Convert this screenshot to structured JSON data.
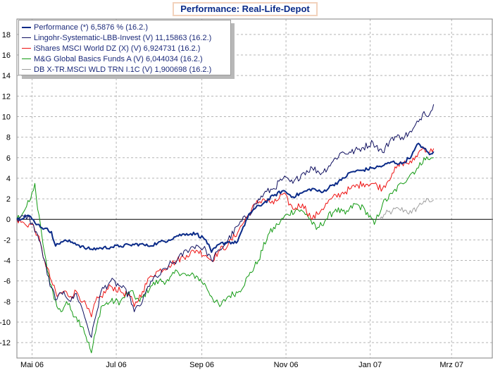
{
  "chart_data": {
    "type": "line",
    "title": "Performance: Real-Life-Depot",
    "xlabel": "",
    "ylabel": "",
    "ylim": [
      -13.5,
      19.5
    ],
    "yticks": [
      -12,
      -10,
      -8,
      -6,
      -4,
      -2,
      0,
      2,
      4,
      6,
      8,
      10,
      12,
      14,
      16,
      18
    ],
    "xlim": [
      "2006-04-20",
      "2007-03-31"
    ],
    "xticks": [
      {
        "date": "2006-05-01",
        "label": "Mai 06"
      },
      {
        "date": "2006-07-01",
        "label": "Jul 06"
      },
      {
        "date": "2006-09-01",
        "label": "Sep 06"
      },
      {
        "date": "2006-11-01",
        "label": "Nov 06"
      },
      {
        "date": "2007-01-01",
        "label": "Jan 07"
      },
      {
        "date": "2007-03-01",
        "label": "Mrz 07"
      }
    ],
    "grid": true,
    "legend_position": "top-left",
    "series": [
      {
        "name": "Performance (*) 6,5876 % (16.2.)",
        "color": "#0a2a88",
        "points": [
          [
            "2006-04-20",
            0
          ],
          [
            "2006-04-28",
            0.4
          ],
          [
            "2006-05-05",
            -0.5
          ],
          [
            "2006-05-10",
            -0.9
          ],
          [
            "2006-05-15",
            -1.2
          ],
          [
            "2006-05-18",
            -2.6
          ],
          [
            "2006-05-22",
            -2.2
          ],
          [
            "2006-05-26",
            -2.1
          ],
          [
            "2006-06-01",
            -2.3
          ],
          [
            "2006-06-08",
            -2.8
          ],
          [
            "2006-06-13",
            -2.9
          ],
          [
            "2006-06-20",
            -2.8
          ],
          [
            "2006-06-27",
            -2.7
          ],
          [
            "2006-07-04",
            -2.6
          ],
          [
            "2006-07-11",
            -2.5
          ],
          [
            "2006-07-18",
            -2.4
          ],
          [
            "2006-07-24",
            -2.6
          ],
          [
            "2006-07-31",
            -2.3
          ],
          [
            "2006-08-08",
            -2.0
          ],
          [
            "2006-08-14",
            -1.6
          ],
          [
            "2006-08-21",
            -1.4
          ],
          [
            "2006-08-28",
            -1.4
          ],
          [
            "2006-09-04",
            -2.0
          ],
          [
            "2006-09-08",
            -3.2
          ],
          [
            "2006-09-14",
            -2.4
          ],
          [
            "2006-09-20",
            -2.2
          ],
          [
            "2006-09-26",
            -2.3
          ],
          [
            "2006-10-02",
            -0.6
          ],
          [
            "2006-10-05",
            0.5
          ],
          [
            "2006-10-09",
            1.0
          ],
          [
            "2006-10-16",
            1.6
          ],
          [
            "2006-10-23",
            2.3
          ],
          [
            "2006-10-30",
            2.8
          ],
          [
            "2006-11-06",
            2.2
          ],
          [
            "2006-11-13",
            2.6
          ],
          [
            "2006-11-20",
            3.0
          ],
          [
            "2006-11-27",
            2.6
          ],
          [
            "2006-12-04",
            3.3
          ],
          [
            "2006-12-11",
            3.8
          ],
          [
            "2006-12-18",
            4.6
          ],
          [
            "2006-12-27",
            4.8
          ],
          [
            "2007-01-03",
            5.0
          ],
          [
            "2007-01-10",
            5.2
          ],
          [
            "2007-01-17",
            5.6
          ],
          [
            "2007-01-24",
            5.4
          ],
          [
            "2007-01-31",
            6.2
          ],
          [
            "2007-02-05",
            7.4
          ],
          [
            "2007-02-09",
            6.9
          ],
          [
            "2007-02-13",
            6.3
          ],
          [
            "2007-02-16",
            6.6
          ]
        ]
      },
      {
        "name": "Lingohr-Systematic-LBB-Invest (V) 11,15863 (16.2.)",
        "color": "#101060",
        "points": [
          [
            "2006-04-20",
            0
          ],
          [
            "2006-04-28",
            0.3
          ],
          [
            "2006-05-05",
            -1.5
          ],
          [
            "2006-05-10",
            -4.0
          ],
          [
            "2006-05-14",
            -6.5
          ],
          [
            "2006-05-19",
            -7.8
          ],
          [
            "2006-05-24",
            -7.0
          ],
          [
            "2006-05-29",
            -8.0
          ],
          [
            "2006-06-02",
            -7.2
          ],
          [
            "2006-06-07",
            -9.0
          ],
          [
            "2006-06-13",
            -11.5
          ],
          [
            "2006-06-16",
            -9.5
          ],
          [
            "2006-06-20",
            -7.0
          ],
          [
            "2006-06-27",
            -6.0
          ],
          [
            "2006-07-04",
            -6.5
          ],
          [
            "2006-07-11",
            -7.5
          ],
          [
            "2006-07-14",
            -9.0
          ],
          [
            "2006-07-20",
            -8.0
          ],
          [
            "2006-07-26",
            -6.0
          ],
          [
            "2006-08-01",
            -5.5
          ],
          [
            "2006-08-08",
            -4.5
          ],
          [
            "2006-08-14",
            -4.0
          ],
          [
            "2006-08-21",
            -3.0
          ],
          [
            "2006-08-28",
            -2.5
          ],
          [
            "2006-09-04",
            -3.0
          ],
          [
            "2006-09-08",
            -4.0
          ],
          [
            "2006-09-14",
            -3.0
          ],
          [
            "2006-09-20",
            -2.0
          ],
          [
            "2006-09-28",
            -0.5
          ],
          [
            "2006-10-05",
            0.5
          ],
          [
            "2006-10-10",
            1.5
          ],
          [
            "2006-10-16",
            2.5
          ],
          [
            "2006-10-23",
            3.0
          ],
          [
            "2006-10-30",
            4.0
          ],
          [
            "2006-11-06",
            3.5
          ],
          [
            "2006-11-13",
            4.5
          ],
          [
            "2006-11-20",
            5.0
          ],
          [
            "2006-11-27",
            4.5
          ],
          [
            "2006-12-04",
            5.5
          ],
          [
            "2006-12-11",
            6.5
          ],
          [
            "2006-12-18",
            6.5
          ],
          [
            "2006-12-27",
            7.0
          ],
          [
            "2007-01-03",
            7.5
          ],
          [
            "2007-01-10",
            6.5
          ],
          [
            "2007-01-17",
            8.0
          ],
          [
            "2007-01-24",
            8.0
          ],
          [
            "2007-01-31",
            8.5
          ],
          [
            "2007-02-05",
            9.5
          ],
          [
            "2007-02-09",
            10.5
          ],
          [
            "2007-02-13",
            10.2
          ],
          [
            "2007-02-16",
            11.2
          ]
        ]
      },
      {
        "name": "iShares MSCI World DZ (X) (V) 6,924731 (16.2.)",
        "color": "#ee1111",
        "points": [
          [
            "2006-04-20",
            0
          ],
          [
            "2006-04-26",
            -0.5
          ],
          [
            "2006-05-01",
            -0.5
          ],
          [
            "2006-05-05",
            -1.5
          ],
          [
            "2006-05-10",
            -4.0
          ],
          [
            "2006-05-15",
            -6.0
          ],
          [
            "2006-05-19",
            -7.5
          ],
          [
            "2006-05-24",
            -7.0
          ],
          [
            "2006-05-29",
            -7.5
          ],
          [
            "2006-06-02",
            -7.0
          ],
          [
            "2006-06-07",
            -8.0
          ],
          [
            "2006-06-13",
            -9.5
          ],
          [
            "2006-06-16",
            -8.0
          ],
          [
            "2006-06-20",
            -7.5
          ],
          [
            "2006-06-27",
            -6.5
          ],
          [
            "2006-07-04",
            -7.0
          ],
          [
            "2006-07-11",
            -7.5
          ],
          [
            "2006-07-14",
            -8.5
          ],
          [
            "2006-07-20",
            -7.0
          ],
          [
            "2006-07-26",
            -5.5
          ],
          [
            "2006-08-01",
            -5.0
          ],
          [
            "2006-08-08",
            -4.5
          ],
          [
            "2006-08-14",
            -4.0
          ],
          [
            "2006-08-21",
            -3.5
          ],
          [
            "2006-08-28",
            -3.0
          ],
          [
            "2006-09-04",
            -3.5
          ],
          [
            "2006-09-08",
            -4.0
          ],
          [
            "2006-09-14",
            -3.0
          ],
          [
            "2006-09-20",
            -2.5
          ],
          [
            "2006-09-28",
            -1.0
          ],
          [
            "2006-10-05",
            0.5
          ],
          [
            "2006-10-10",
            1.5
          ],
          [
            "2006-10-16",
            2.0
          ],
          [
            "2006-10-23",
            1.5
          ],
          [
            "2006-10-30",
            2.5
          ],
          [
            "2006-11-06",
            1.0
          ],
          [
            "2006-11-13",
            1.5
          ],
          [
            "2006-11-20",
            0.0
          ],
          [
            "2006-11-27",
            1.0
          ],
          [
            "2006-12-04",
            2.0
          ],
          [
            "2006-12-11",
            2.5
          ],
          [
            "2006-12-18",
            3.0
          ],
          [
            "2006-12-27",
            3.5
          ],
          [
            "2007-01-03",
            3.5
          ],
          [
            "2007-01-10",
            3.0
          ],
          [
            "2007-01-17",
            4.5
          ],
          [
            "2007-01-24",
            5.5
          ],
          [
            "2007-01-31",
            5.5
          ],
          [
            "2007-02-05",
            6.5
          ],
          [
            "2007-02-09",
            7.0
          ],
          [
            "2007-02-13",
            6.5
          ],
          [
            "2007-02-16",
            6.9
          ]
        ]
      },
      {
        "name": "M&G Global Basics Funds A (V) 6,044034 (16.2.)",
        "color": "#129a12",
        "points": [
          [
            "2006-04-20",
            0
          ],
          [
            "2006-04-26",
            1.0
          ],
          [
            "2006-04-30",
            2.0
          ],
          [
            "2006-05-03",
            3.5
          ],
          [
            "2006-05-05",
            1.0
          ],
          [
            "2006-05-08",
            -1.5
          ],
          [
            "2006-05-12",
            -5.0
          ],
          [
            "2006-05-16",
            -7.0
          ],
          [
            "2006-05-19",
            -8.5
          ],
          [
            "2006-05-22",
            -9.0
          ],
          [
            "2006-05-26",
            -8.0
          ],
          [
            "2006-05-30",
            -9.0
          ],
          [
            "2006-06-02",
            -9.5
          ],
          [
            "2006-06-07",
            -10.5
          ],
          [
            "2006-06-13",
            -13.0
          ],
          [
            "2006-06-16",
            -11.0
          ],
          [
            "2006-06-20",
            -8.5
          ],
          [
            "2006-06-27",
            -8.0
          ],
          [
            "2006-07-04",
            -8.0
          ],
          [
            "2006-07-11",
            -7.0
          ],
          [
            "2006-07-18",
            -8.0
          ],
          [
            "2006-07-26",
            -6.5
          ],
          [
            "2006-08-01",
            -6.0
          ],
          [
            "2006-08-08",
            -6.0
          ],
          [
            "2006-08-14",
            -5.0
          ],
          [
            "2006-08-21",
            -5.5
          ],
          [
            "2006-08-28",
            -5.5
          ],
          [
            "2006-09-04",
            -6.5
          ],
          [
            "2006-09-08",
            -7.5
          ],
          [
            "2006-09-14",
            -8.5
          ],
          [
            "2006-09-20",
            -7.5
          ],
          [
            "2006-09-28",
            -7.0
          ],
          [
            "2006-10-05",
            -5.5
          ],
          [
            "2006-10-12",
            -4.0
          ],
          [
            "2006-10-19",
            -1.5
          ],
          [
            "2006-10-26",
            -0.5
          ],
          [
            "2006-11-02",
            0.5
          ],
          [
            "2006-11-09",
            1.0
          ],
          [
            "2006-11-16",
            0.5
          ],
          [
            "2006-11-23",
            -1.0
          ],
          [
            "2006-11-30",
            0.0
          ],
          [
            "2006-12-07",
            1.0
          ],
          [
            "2006-12-14",
            0.5
          ],
          [
            "2006-12-21",
            1.5
          ],
          [
            "2006-12-28",
            1.0
          ],
          [
            "2007-01-04",
            -0.5
          ],
          [
            "2007-01-10",
            1.5
          ],
          [
            "2007-01-17",
            2.5
          ],
          [
            "2007-01-24",
            3.5
          ],
          [
            "2007-01-31",
            4.5
          ],
          [
            "2007-02-05",
            5.0
          ],
          [
            "2007-02-09",
            6.0
          ],
          [
            "2007-02-13",
            5.8
          ],
          [
            "2007-02-16",
            6.0
          ]
        ]
      },
      {
        "name": "DB X-TR.MSCI WLD TRN I.1C (V) 1,900698 (16.2.)",
        "color": "#a0a0a0",
        "points": [
          [
            "2007-01-08",
            0.0
          ],
          [
            "2007-01-12",
            0.5
          ],
          [
            "2007-01-17",
            0.8
          ],
          [
            "2007-01-22",
            1.0
          ],
          [
            "2007-01-26",
            0.9
          ],
          [
            "2007-01-31",
            0.6
          ],
          [
            "2007-02-05",
            1.3
          ],
          [
            "2007-02-09",
            1.8
          ],
          [
            "2007-02-13",
            1.7
          ],
          [
            "2007-02-16",
            1.9
          ]
        ]
      }
    ]
  }
}
